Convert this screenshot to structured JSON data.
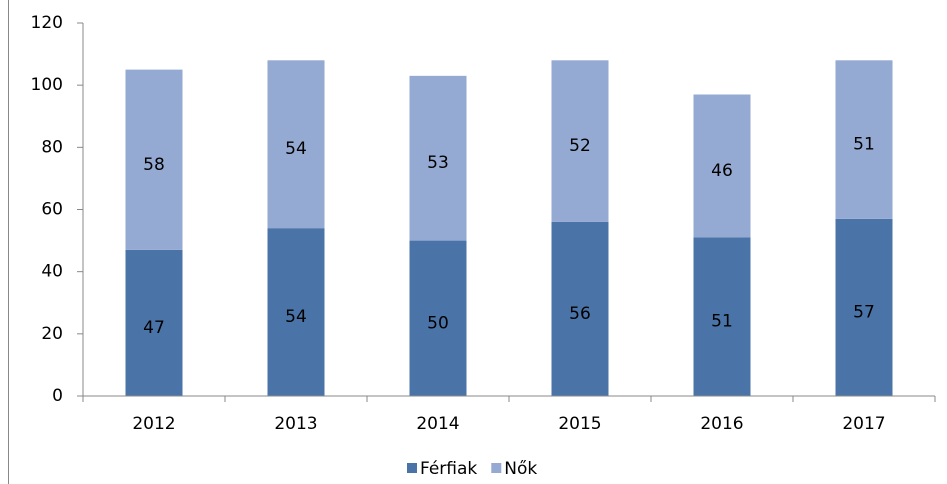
{
  "chart_data": {
    "type": "stacked_bar",
    "categories": [
      "2012",
      "2013",
      "2014",
      "2015",
      "2016",
      "2017"
    ],
    "series": [
      {
        "name": "Férfiak",
        "color": "#4a74a8",
        "values": [
          47,
          54,
          50,
          56,
          51,
          57
        ]
      },
      {
        "name": "Nők",
        "color": "#95aad3",
        "values": [
          58,
          54,
          53,
          52,
          46,
          51
        ]
      }
    ],
    "ylim": [
      0,
      120
    ],
    "yticks": [
      0,
      20,
      40,
      60,
      80,
      100,
      120
    ],
    "grid": false,
    "legend": "bottom",
    "data_labels": true
  }
}
